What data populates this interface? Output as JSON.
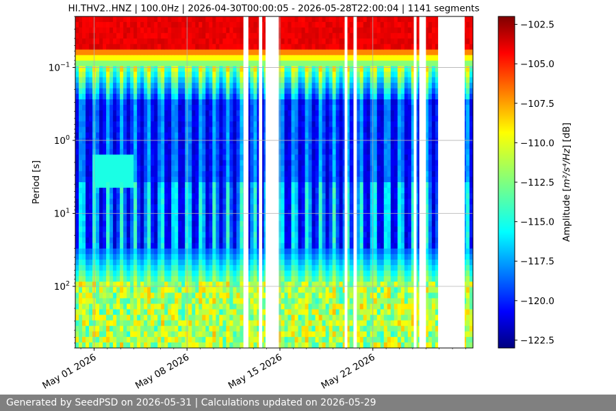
{
  "chart_data": {
    "type": "heatmap",
    "title": "HI.THV2..HNZ | 100.0Hz | 2026-04-30T00:00:05 - 2026-05-28T22:00:04 | 1141 segments",
    "ylabel": "Period [s]",
    "xlabel": "",
    "y_scale": "log",
    "y_inverted": true,
    "y_range_s": [
      0.02,
      700
    ],
    "y_ticks": [
      {
        "value": 0.1,
        "base": "10",
        "exp": "−1"
      },
      {
        "value": 1,
        "base": "10",
        "exp": "0"
      },
      {
        "value": 10,
        "base": "10",
        "exp": "1"
      },
      {
        "value": 100,
        "base": "10",
        "exp": "2"
      }
    ],
    "x_range": [
      "2026-04-29T14:00",
      "2026-05-29T13:00"
    ],
    "x_ticks": [
      {
        "date": "2026-05-01",
        "label": "May 01 2026"
      },
      {
        "date": "2026-05-08",
        "label": "May 08 2026"
      },
      {
        "date": "2026-05-15",
        "label": "May 15 2026"
      },
      {
        "date": "2026-05-22",
        "label": "May 22 2026"
      }
    ],
    "data_gaps": [
      [
        "2026-05-12T06:00",
        "2026-05-12T15:00"
      ],
      [
        "2026-05-13T10:00",
        "2026-05-13T16:00"
      ],
      [
        "2026-05-13T22:00",
        "2026-05-14T22:00"
      ],
      [
        "2026-05-19T21:00",
        "2026-05-20T02:00"
      ],
      [
        "2026-05-20T13:00",
        "2026-05-20T19:00"
      ],
      [
        "2026-05-25T02:00",
        "2026-05-25T07:00"
      ],
      [
        "2026-05-25T12:00",
        "2026-05-26T00:00"
      ],
      [
        "2026-05-26T22:00",
        "2026-05-28T22:00"
      ]
    ],
    "colorbar": {
      "label_prefix": "Amplitude [",
      "label_math": "m²/s⁴/Hz",
      "label_suffix": "] [dB]",
      "range": [
        -123,
        -102
      ],
      "ticks": [
        -102.5,
        -105.0,
        -107.5,
        -110.0,
        -112.5,
        -115.0,
        -117.5,
        -120.0,
        -122.5
      ],
      "colormap": "jet"
    },
    "grid": true
  },
  "footer": {
    "text": "Generated by SeedPSD on 2026-05-31 | Calculations updated on 2026-05-29"
  }
}
